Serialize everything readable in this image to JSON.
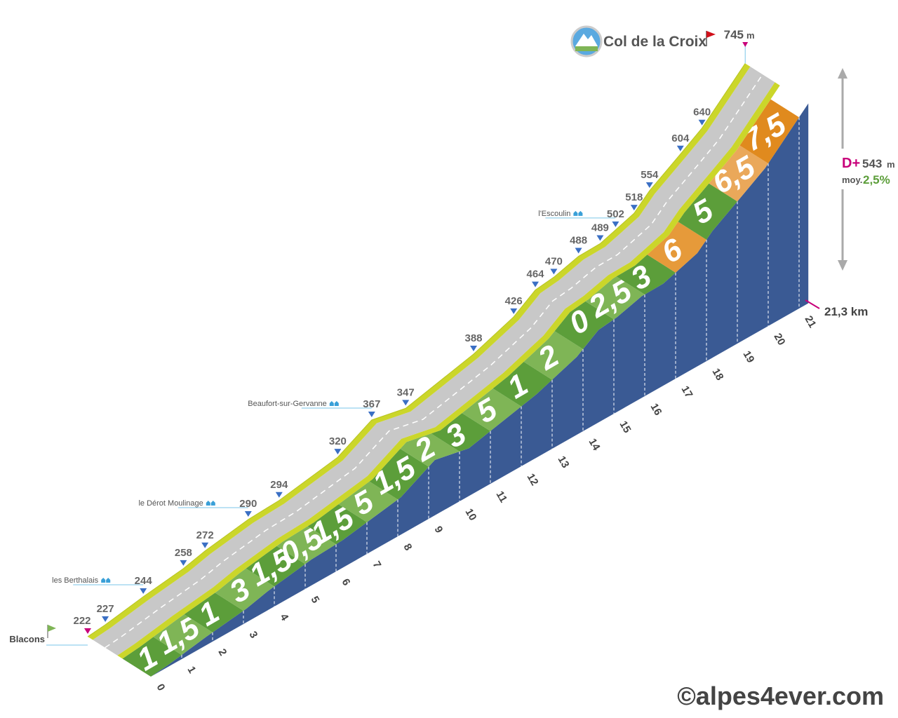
{
  "chart_data": {
    "type": "climb_profile",
    "title": "Col de la Croix",
    "elevation_unit": "m",
    "points": {
      "x": [
        0,
        0.57,
        1.8,
        3.1,
        3.8,
        5.2,
        6.2,
        8.1,
        9.2,
        10.3,
        12.5,
        13.8,
        14.5,
        15.1,
        15.9,
        16.6,
        17.1,
        17.7,
        18.2,
        19.2,
        19.9,
        21.3
      ],
      "values": [
        222,
        227,
        244,
        258,
        272,
        290,
        294,
        320,
        367,
        347,
        388,
        426,
        464,
        470,
        488,
        489,
        502,
        518,
        554,
        604,
        640,
        745
      ]
    },
    "xticks": [
      0,
      1,
      2,
      3,
      4,
      5,
      6,
      7,
      8,
      9,
      10,
      11,
      12,
      13,
      14,
      15,
      16,
      17,
      18,
      19,
      20,
      21
    ],
    "gradients": {
      "values": [
        1,
        1.5,
        1,
        3,
        1.5,
        0.5,
        1.5,
        5,
        1.5,
        2,
        3,
        5,
        1,
        2,
        0,
        2.5,
        3,
        6,
        5,
        6.5,
        7.5
      ],
      "value_labels": [
        "1",
        "1,5",
        "1",
        "3",
        "1,5",
        "0,5",
        "1,5",
        "5",
        "1,5",
        "2",
        "3",
        "5",
        "1",
        "2",
        "0",
        "2,5",
        "3",
        "6",
        "5",
        "6,5",
        "7,5"
      ],
      "colors": [
        "#5c9e3a",
        "#7fb556",
        "#5c9e3a",
        "#7fb556",
        "#5c9e3a",
        "#7fb556",
        "#5c9e3a",
        "#7fb556",
        "#5c9e3a",
        "#7fb556",
        "#5c9e3a",
        "#7fb556",
        "#5c9e3a",
        "#7fb556",
        "#5c9e3a",
        "#7fb556",
        "#5c9e3a",
        "#e69a3a",
        "#5c9e3a",
        "#eaa85a",
        "#e08a1e"
      ]
    },
    "distance": {
      "value": 21.3,
      "label": "21,3 km"
    },
    "climb": {
      "label": "D+",
      "value": 543
    },
    "average": {
      "label": "moy.",
      "value": 2.5,
      "value_label": "2,5%"
    },
    "places": [
      {
        "name": "Blacons",
        "x": 0
      },
      {
        "name": "les Berthalais",
        "x": 1.8
      },
      {
        "name": "le Dérot Moulinage",
        "x": 5.2
      },
      {
        "name": "Beaufort-sur-Gervanne",
        "x": 9.2
      },
      {
        "name": "l'Escoulin",
        "x": 17.1
      }
    ],
    "credit": "©alpes4ever.com"
  }
}
